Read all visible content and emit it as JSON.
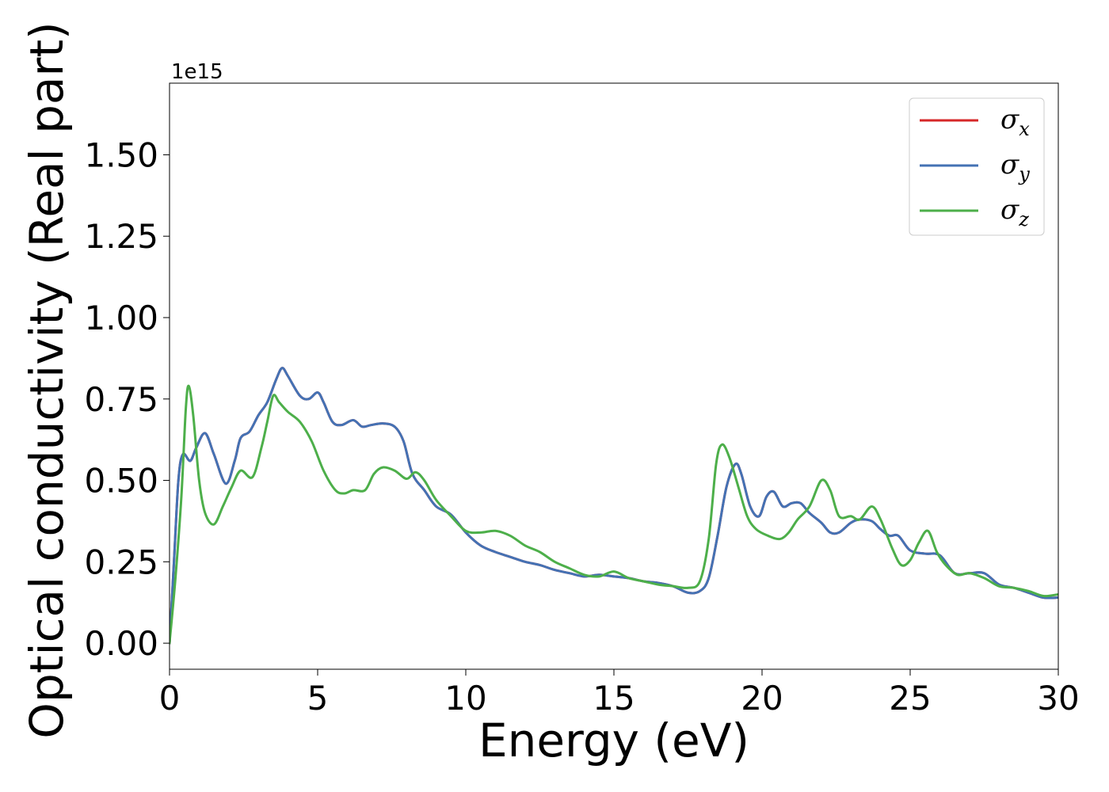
{
  "chart_data": {
    "type": "line",
    "xlabel": "Energy (eV)",
    "ylabel": "Optical conductivity (Real part)",
    "y_offset_label": "1e15",
    "xlim": [
      0,
      30
    ],
    "ylim": [
      -0.08,
      1.72
    ],
    "x_ticks": [
      0,
      5,
      10,
      15,
      20,
      25,
      30
    ],
    "x_tick_labels": [
      "0",
      "5",
      "10",
      "15",
      "20",
      "25",
      "30"
    ],
    "y_ticks": [
      0.0,
      0.25,
      0.5,
      0.75,
      1.0,
      1.25,
      1.5
    ],
    "y_tick_labels": [
      "0.00",
      "0.25",
      "0.50",
      "0.75",
      "1.00",
      "1.25",
      "1.50"
    ],
    "grid": false,
    "legend_position": "top-right",
    "series": [
      {
        "name": "σx",
        "symbol": "σ",
        "subscript": "x",
        "color": "#d62728",
        "x": [
          0,
          0.15,
          0.3,
          0.45,
          0.7,
          0.9,
          1.2,
          1.5,
          1.9,
          2.2,
          2.4,
          2.7,
          3.0,
          3.3,
          3.6,
          3.8,
          4.0,
          4.4,
          4.7,
          5.0,
          5.2,
          5.5,
          5.8,
          6.2,
          6.5,
          6.8,
          7.2,
          7.6,
          7.9,
          8.2,
          8.6,
          9.0,
          9.5,
          10.0,
          10.5,
          11.0,
          11.5,
          12.0,
          12.5,
          13.0,
          13.5,
          14.0,
          14.5,
          15.0,
          15.5,
          16.0,
          16.5,
          17.0,
          17.5,
          17.9,
          18.2,
          18.5,
          18.8,
          19.1,
          19.3,
          19.6,
          19.9,
          20.15,
          20.4,
          20.7,
          21.0,
          21.3,
          21.6,
          22.0,
          22.3,
          22.6,
          23.0,
          23.3,
          23.7,
          24.0,
          24.3,
          24.6,
          25.0,
          25.5,
          26.0,
          26.5,
          27.0,
          27.5,
          28.0,
          28.5,
          29.0,
          29.5,
          30.0
        ],
        "y": [
          0.0,
          0.25,
          0.5,
          0.58,
          0.56,
          0.6,
          0.645,
          0.58,
          0.49,
          0.56,
          0.63,
          0.65,
          0.7,
          0.74,
          0.81,
          0.845,
          0.82,
          0.76,
          0.75,
          0.77,
          0.74,
          0.68,
          0.67,
          0.685,
          0.665,
          0.67,
          0.675,
          0.665,
          0.62,
          0.52,
          0.47,
          0.42,
          0.395,
          0.34,
          0.3,
          0.28,
          0.265,
          0.25,
          0.24,
          0.225,
          0.215,
          0.205,
          0.21,
          0.205,
          0.2,
          0.19,
          0.185,
          0.175,
          0.155,
          0.16,
          0.2,
          0.33,
          0.48,
          0.55,
          0.52,
          0.42,
          0.39,
          0.45,
          0.465,
          0.42,
          0.43,
          0.43,
          0.4,
          0.37,
          0.34,
          0.34,
          0.37,
          0.38,
          0.375,
          0.35,
          0.33,
          0.33,
          0.285,
          0.275,
          0.27,
          0.215,
          0.215,
          0.215,
          0.18,
          0.17,
          0.155,
          0.14,
          0.14
        ]
      },
      {
        "name": "σy",
        "symbol": "σ",
        "subscript": "y",
        "color": "#4472b4",
        "x": [
          0,
          0.15,
          0.3,
          0.45,
          0.7,
          0.9,
          1.2,
          1.5,
          1.9,
          2.2,
          2.4,
          2.7,
          3.0,
          3.3,
          3.6,
          3.8,
          4.0,
          4.4,
          4.7,
          5.0,
          5.2,
          5.5,
          5.8,
          6.2,
          6.5,
          6.8,
          7.2,
          7.6,
          7.9,
          8.2,
          8.6,
          9.0,
          9.5,
          10.0,
          10.5,
          11.0,
          11.5,
          12.0,
          12.5,
          13.0,
          13.5,
          14.0,
          14.5,
          15.0,
          15.5,
          16.0,
          16.5,
          17.0,
          17.5,
          17.9,
          18.2,
          18.5,
          18.8,
          19.1,
          19.3,
          19.6,
          19.9,
          20.15,
          20.4,
          20.7,
          21.0,
          21.3,
          21.6,
          22.0,
          22.3,
          22.6,
          23.0,
          23.3,
          23.7,
          24.0,
          24.3,
          24.6,
          25.0,
          25.5,
          26.0,
          26.5,
          27.0,
          27.5,
          28.0,
          28.5,
          29.0,
          29.5,
          30.0
        ],
        "y": [
          0.0,
          0.25,
          0.5,
          0.58,
          0.56,
          0.6,
          0.645,
          0.58,
          0.49,
          0.56,
          0.63,
          0.65,
          0.7,
          0.74,
          0.81,
          0.845,
          0.82,
          0.76,
          0.75,
          0.77,
          0.74,
          0.68,
          0.67,
          0.685,
          0.665,
          0.67,
          0.675,
          0.665,
          0.62,
          0.52,
          0.47,
          0.42,
          0.395,
          0.34,
          0.3,
          0.28,
          0.265,
          0.25,
          0.24,
          0.225,
          0.215,
          0.205,
          0.21,
          0.205,
          0.2,
          0.19,
          0.185,
          0.175,
          0.155,
          0.16,
          0.2,
          0.33,
          0.48,
          0.55,
          0.52,
          0.42,
          0.39,
          0.45,
          0.465,
          0.42,
          0.43,
          0.43,
          0.4,
          0.37,
          0.34,
          0.34,
          0.37,
          0.38,
          0.375,
          0.35,
          0.33,
          0.33,
          0.285,
          0.275,
          0.27,
          0.215,
          0.215,
          0.215,
          0.18,
          0.17,
          0.155,
          0.14,
          0.14
        ]
      },
      {
        "name": "σz",
        "symbol": "σ",
        "subscript": "z",
        "color": "#4daf4a",
        "x": [
          0,
          0.2,
          0.4,
          0.55,
          0.65,
          0.8,
          1.0,
          1.2,
          1.5,
          1.8,
          2.1,
          2.4,
          2.8,
          3.1,
          3.3,
          3.5,
          3.7,
          4.0,
          4.4,
          4.8,
          5.2,
          5.6,
          5.9,
          6.2,
          6.6,
          6.9,
          7.2,
          7.6,
          8.0,
          8.3,
          8.6,
          9.0,
          9.5,
          10.0,
          10.5,
          11.0,
          11.5,
          12.0,
          12.5,
          13.0,
          13.5,
          14.0,
          14.5,
          15.0,
          15.5,
          16.0,
          16.5,
          17.0,
          17.5,
          17.9,
          18.2,
          18.45,
          18.65,
          18.9,
          19.2,
          19.5,
          19.8,
          20.2,
          20.6,
          20.9,
          21.2,
          21.6,
          22.0,
          22.3,
          22.6,
          23.0,
          23.3,
          23.7,
          24.0,
          24.4,
          24.7,
          25.0,
          25.3,
          25.6,
          25.9,
          26.2,
          26.6,
          27.0,
          27.5,
          28.0,
          28.5,
          29.0,
          29.5,
          30.0
        ],
        "y": [
          0.0,
          0.2,
          0.45,
          0.72,
          0.79,
          0.7,
          0.5,
          0.4,
          0.365,
          0.42,
          0.48,
          0.53,
          0.51,
          0.6,
          0.68,
          0.76,
          0.74,
          0.71,
          0.68,
          0.62,
          0.53,
          0.47,
          0.46,
          0.47,
          0.47,
          0.52,
          0.54,
          0.53,
          0.505,
          0.525,
          0.5,
          0.44,
          0.39,
          0.345,
          0.34,
          0.345,
          0.33,
          0.3,
          0.28,
          0.25,
          0.23,
          0.21,
          0.205,
          0.22,
          0.2,
          0.19,
          0.18,
          0.175,
          0.17,
          0.19,
          0.32,
          0.55,
          0.61,
          0.57,
          0.48,
          0.39,
          0.35,
          0.33,
          0.32,
          0.34,
          0.38,
          0.42,
          0.5,
          0.47,
          0.39,
          0.39,
          0.38,
          0.42,
          0.38,
          0.29,
          0.24,
          0.255,
          0.31,
          0.345,
          0.28,
          0.24,
          0.21,
          0.215,
          0.2,
          0.175,
          0.17,
          0.16,
          0.145,
          0.15
        ]
      }
    ]
  }
}
